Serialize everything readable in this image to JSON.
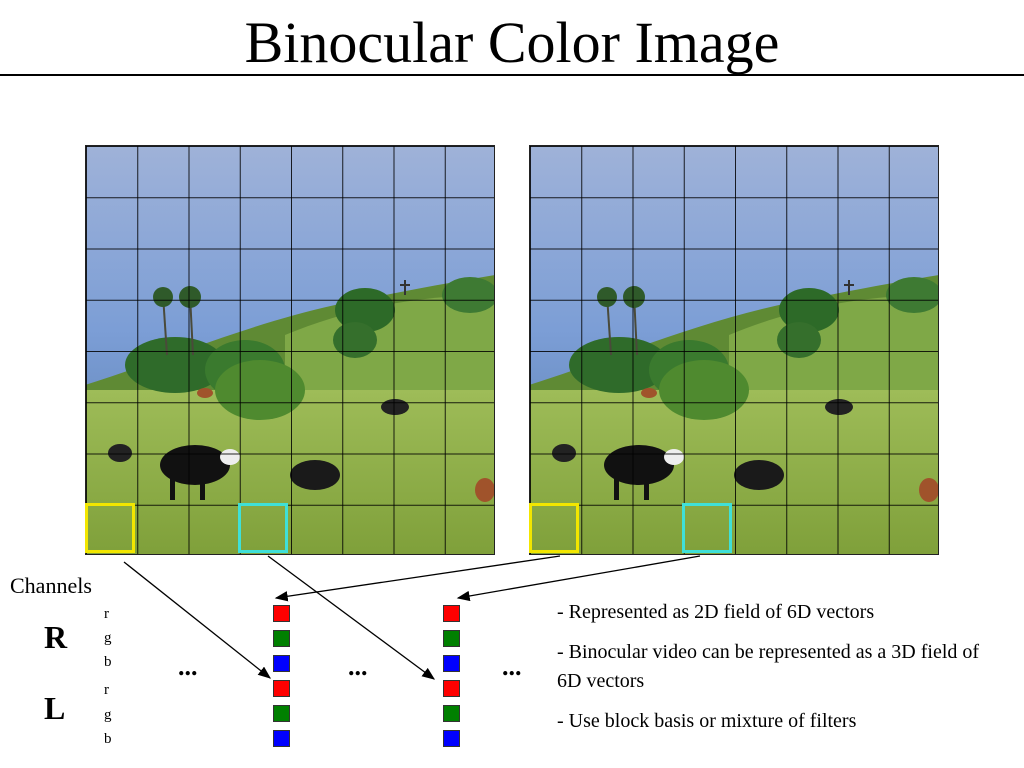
{
  "title": "Binocular Color Image",
  "labels": {
    "channels": "Channels",
    "right_eye": "R",
    "left_eye": "L",
    "channel_letters": [
      "r",
      "g",
      "b",
      "r",
      "g",
      "b"
    ],
    "ellipsis": "..."
  },
  "highlight_colors": {
    "yellow_block": "#f2e600",
    "cyan_block": "#3fe0d8"
  },
  "vector_colors": [
    "#ff0000",
    "#008000",
    "#0000ff",
    "#ff0000",
    "#008000",
    "#0000ff"
  ],
  "notes": [
    "- Represented as 2D field of 6D vectors",
    "- Binocular video can be represented as a 3D field of 6D vectors",
    "- Use block basis or mixture of filters"
  ],
  "images": {
    "left": "landscape-photo-with-cows",
    "right": "landscape-photo-with-cows"
  }
}
